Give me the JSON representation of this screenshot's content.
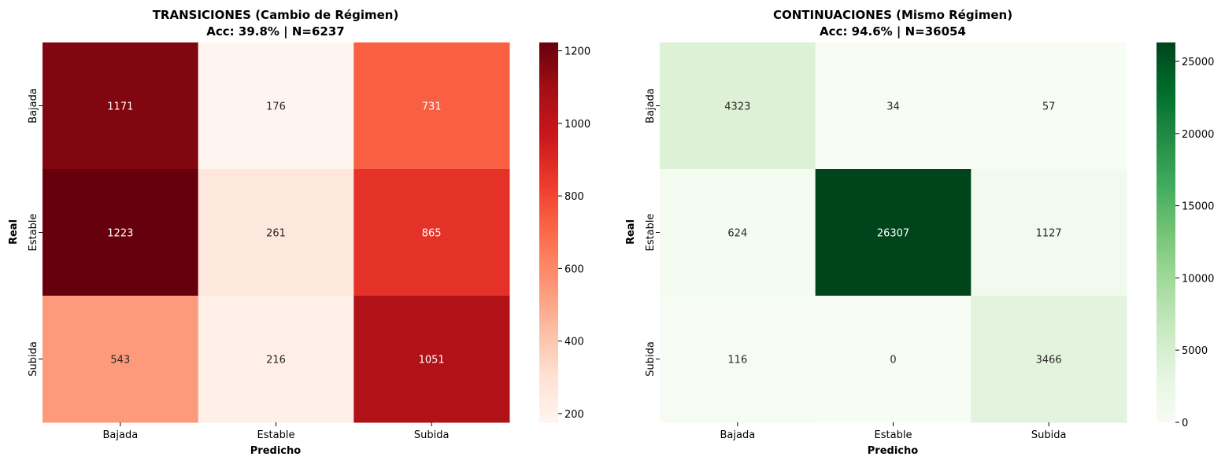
{
  "chart_data": [
    {
      "type": "heatmap",
      "title": "TRANSICIONES (Cambio de Régimen)",
      "subtitle": "Acc: 39.8% | N=6237",
      "xlabel": "Predicho",
      "ylabel": "Real",
      "x_categories": [
        "Bajada",
        "Estable",
        "Subida"
      ],
      "y_categories": [
        "Bajada",
        "Estable",
        "Subida"
      ],
      "values": [
        [
          1171,
          176,
          731
        ],
        [
          1223,
          261,
          865
        ],
        [
          543,
          216,
          1051
        ]
      ],
      "colormap": "Reds",
      "colormap_colors": [
        "#fff5f0",
        "#fee0d2",
        "#fcbba1",
        "#fc9272",
        "#fb6a4a",
        "#ef3b2c",
        "#cb181d",
        "#a50f15",
        "#67000d"
      ],
      "color_range": [
        176,
        1223
      ],
      "colorbar_ticks": [
        200,
        400,
        600,
        800,
        1000,
        1200
      ],
      "colorbar_tick_labels": [
        "200",
        "400",
        "600",
        "800",
        "1000",
        "1200"
      ]
    },
    {
      "type": "heatmap",
      "title": "CONTINUACIONES (Mismo Régimen)",
      "subtitle": "Acc: 94.6% | N=36054",
      "xlabel": "Predicho",
      "ylabel": "Real",
      "x_categories": [
        "Bajada",
        "Estable",
        "Subida"
      ],
      "y_categories": [
        "Bajada",
        "Estable",
        "Subida"
      ],
      "values": [
        [
          4323,
          34,
          57
        ],
        [
          624,
          26307,
          1127
        ],
        [
          116,
          0,
          3466
        ]
      ],
      "colormap": "Greens",
      "colormap_colors": [
        "#f7fcf5",
        "#e5f5e0",
        "#c7e9c0",
        "#a1d99b",
        "#74c476",
        "#41ab5d",
        "#238b45",
        "#006d2c",
        "#00441b"
      ],
      "color_range": [
        0,
        26307
      ],
      "colorbar_ticks": [
        0,
        5000,
        10000,
        15000,
        20000,
        25000
      ],
      "colorbar_tick_labels": [
        "0",
        "5000",
        "10000",
        "15000",
        "20000",
        "25000"
      ]
    }
  ]
}
